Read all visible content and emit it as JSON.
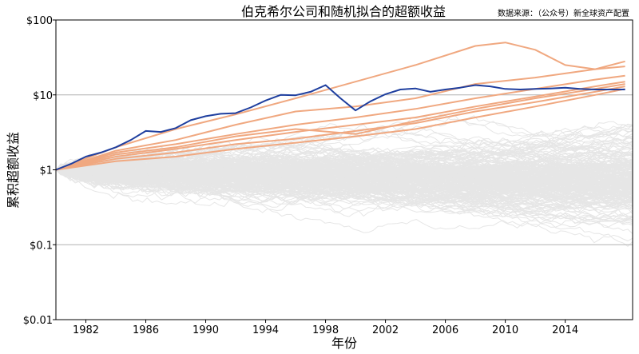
{
  "chart_data": {
    "type": "line",
    "title": "伯克希尔公司和随机拟合的超额收益",
    "source": "数据来源：（公众号）新全球资产配置",
    "xlabel": "年份",
    "ylabel": "累积超额收益",
    "y_scale": "log",
    "ylim": [
      0.01,
      100
    ],
    "xlim": [
      1980.0,
      2018.5
    ],
    "x_ticks": [
      1982,
      1986,
      1990,
      1994,
      1998,
      2002,
      2006,
      2010,
      2014
    ],
    "x_tick_labels": [
      "1982",
      "1986",
      "1990",
      "1994",
      "1998",
      "2002",
      "2006",
      "2010",
      "2014"
    ],
    "y_ticks": [
      0.01,
      0.1,
      1,
      10,
      100
    ],
    "y_tick_labels": [
      "$0.01",
      "$0.1",
      "$1",
      "$10",
      "$100"
    ],
    "y_gridlines": [
      0.1,
      10
    ],
    "colors": {
      "berkshire": "#1f3f9f",
      "highlight": "#f0a880",
      "background_paths": "#e6e6e6"
    },
    "series": [
      {
        "name": "伯克希尔",
        "x": [
          1980,
          1981,
          1982,
          1983,
          1984,
          1985,
          1986,
          1987,
          1988,
          1989,
          1990,
          1991,
          1992,
          1993,
          1994,
          1995,
          1996,
          1997,
          1998,
          1999,
          2000,
          2001,
          2002,
          2003,
          2004,
          2005,
          2006,
          2007,
          2008,
          2009,
          2010,
          2011,
          2012,
          2013,
          2014,
          2015,
          2016,
          2017,
          2018
        ],
        "values": [
          1.0,
          1.2,
          1.5,
          1.7,
          2.0,
          2.5,
          3.3,
          3.2,
          3.6,
          4.6,
          5.2,
          5.6,
          5.7,
          6.8,
          8.4,
          10.0,
          9.9,
          11.0,
          13.5,
          9.0,
          6.2,
          8.2,
          10.2,
          11.8,
          12.2,
          11.0,
          11.8,
          12.5,
          13.5,
          13.0,
          12.0,
          11.8,
          12.0,
          12.2,
          12.5,
          12.0,
          11.8,
          11.8,
          11.8
        ]
      },
      {
        "name": "",
        "x": [
          1980,
          1984,
          1988,
          1992,
          1996,
          2000,
          2004,
          2008,
          2010,
          2012,
          2014,
          2016,
          2018
        ],
        "values": [
          1.0,
          2.0,
          3.5,
          5.5,
          9.0,
          15.0,
          25.0,
          45.0,
          50.0,
          40.0,
          25.0,
          22.0,
          24.0
        ]
      },
      {
        "name": "",
        "x": [
          1980,
          1984,
          1988,
          1992,
          1996,
          2000,
          2004,
          2008,
          2012,
          2016,
          2018
        ],
        "values": [
          1.0,
          1.8,
          2.5,
          4.0,
          6.0,
          7.0,
          9.0,
          14.0,
          17.0,
          22.0,
          28.0
        ]
      },
      {
        "name": "",
        "x": [
          1980,
          1984,
          1988,
          1992,
          1996,
          2000,
          2004,
          2008,
          2012,
          2016,
          2018
        ],
        "values": [
          1.0,
          1.7,
          2.2,
          3.0,
          4.0,
          5.0,
          6.5,
          9.0,
          12.0,
          16.0,
          18.0
        ]
      },
      {
        "name": "",
        "x": [
          1980,
          1984,
          1988,
          1992,
          1996,
          2000,
          2004,
          2008,
          2012,
          2016,
          2018
        ],
        "values": [
          1.0,
          1.5,
          1.9,
          2.5,
          3.2,
          4.0,
          5.0,
          7.0,
          9.5,
          13.0,
          15.0
        ]
      },
      {
        "name": "",
        "x": [
          1980,
          1984,
          1988,
          1992,
          1996,
          2000,
          2004,
          2008,
          2012,
          2016,
          2018
        ],
        "values": [
          1.0,
          1.4,
          1.7,
          2.2,
          2.6,
          3.3,
          4.2,
          6.0,
          8.0,
          11.0,
          13.0
        ]
      },
      {
        "name": "",
        "x": [
          1980,
          1984,
          1988,
          1992,
          1996,
          2000,
          2004,
          2008,
          2012,
          2016,
          2018
        ],
        "values": [
          1.0,
          1.3,
          1.5,
          1.9,
          2.3,
          2.8,
          3.5,
          5.0,
          7.0,
          10.0,
          12.0
        ]
      },
      {
        "name": "",
        "x": [
          1980,
          1984,
          1988,
          1992,
          1996,
          2000,
          2004,
          2008,
          2012,
          2016,
          2018
        ],
        "values": [
          1.0,
          1.6,
          2.0,
          2.8,
          3.5,
          3.0,
          4.5,
          6.5,
          9.0,
          12.0,
          14.0
        ]
      }
    ]
  }
}
